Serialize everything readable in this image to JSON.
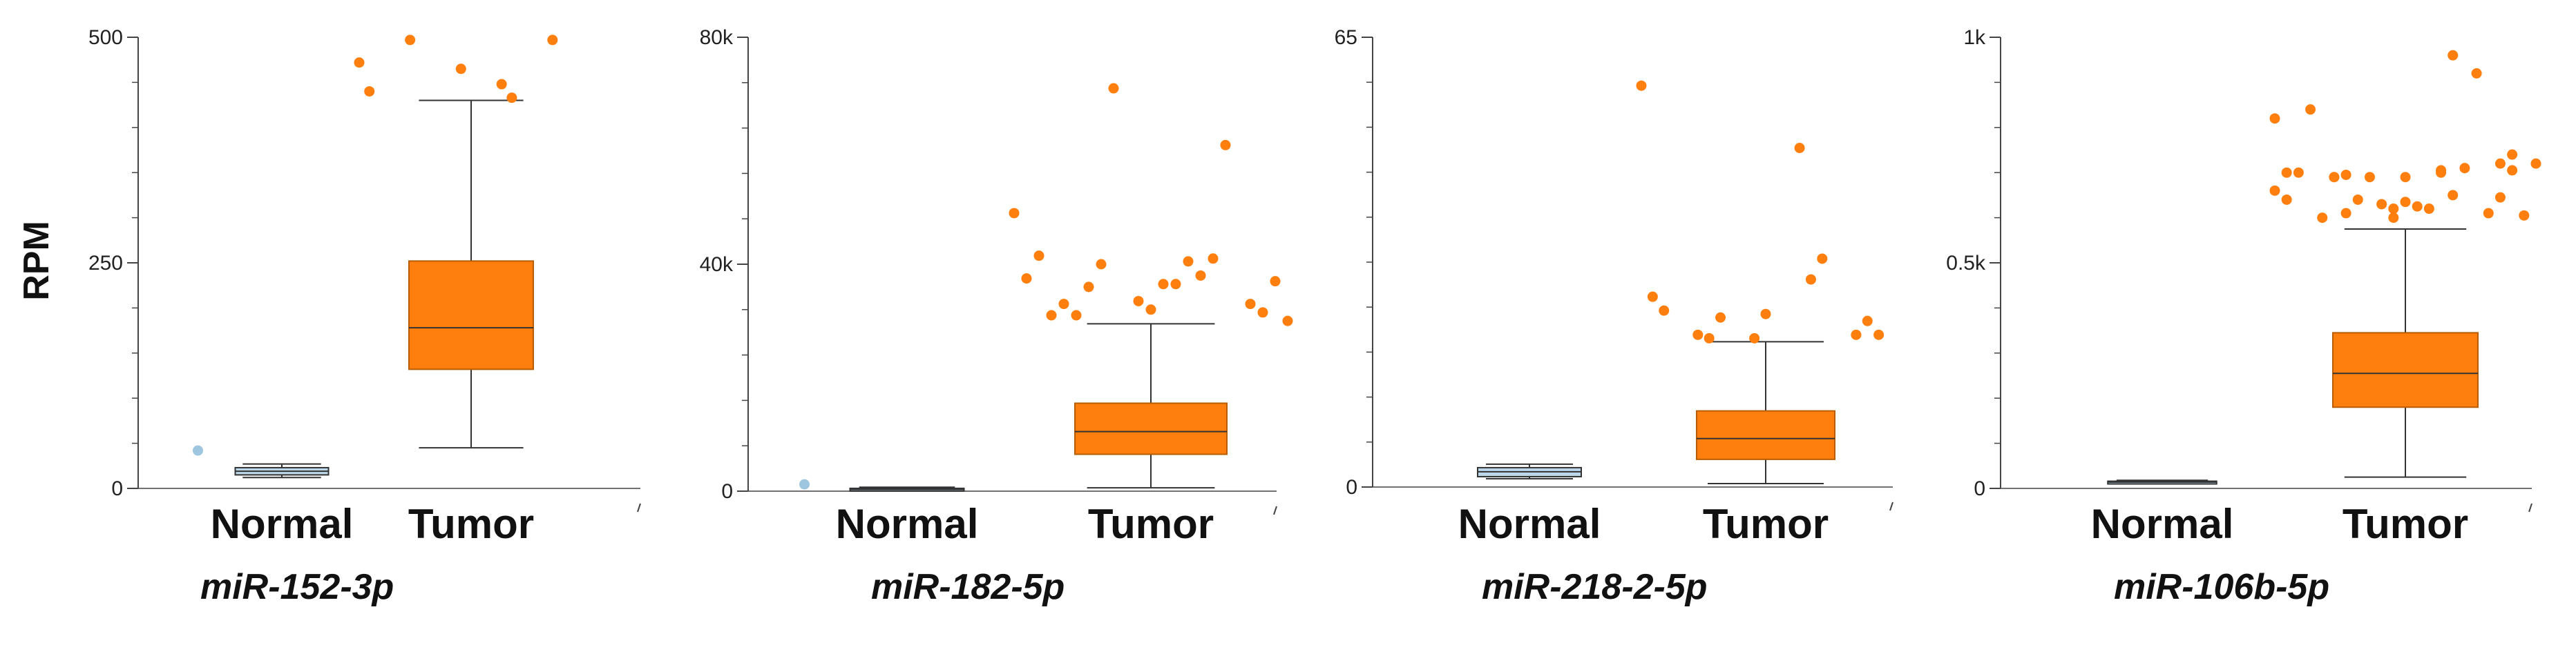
{
  "y_axis_title": "RPM",
  "colors": {
    "tumor_fill": "#ff7f0e",
    "tumor_stroke": "#b85c00",
    "normal_fill": "#bcd8ea",
    "normal_stroke": "#333333",
    "normal_outlier": "#9ec6df",
    "axis": "#444444"
  },
  "chart_data": [
    {
      "type": "box",
      "title": "miR-152-3p",
      "ylabel": "RPM",
      "ylim": [
        0,
        500
      ],
      "yticks": [
        0,
        250,
        500
      ],
      "ytick_labels": [
        "0",
        "250",
        "500"
      ],
      "categories": [
        "Normal",
        "Tumor"
      ],
      "boxes": [
        {
          "name": "Normal",
          "min": 12,
          "q1": 15,
          "median": 19,
          "q3": 23,
          "max": 27,
          "outliers": [
            42
          ]
        },
        {
          "name": "Tumor",
          "min": 45,
          "q1": 132,
          "median": 178,
          "q3": 252,
          "max": 430,
          "outliers": [
            472,
            448,
            497,
            497,
            465,
            440,
            433
          ]
        }
      ]
    },
    {
      "type": "box",
      "title": "miR-182-5p",
      "ylabel": "RPM",
      "ylim": [
        0,
        80000
      ],
      "yticks": [
        0,
        40000,
        80000
      ],
      "ytick_labels": [
        "0",
        "40k",
        "80k"
      ],
      "categories": [
        "Normal",
        "Tumor"
      ],
      "boxes": [
        {
          "name": "Normal",
          "min": 100,
          "q1": 200,
          "median": 300,
          "q3": 500,
          "max": 700,
          "outliers": [
            1200
          ]
        },
        {
          "name": "Tumor",
          "min": 600,
          "q1": 6500,
          "median": 10500,
          "q3": 15500,
          "max": 29500,
          "outliers": [
            49000,
            40500,
            31000,
            33000,
            33500,
            37500,
            38000,
            36000,
            31500,
            32000,
            41500,
            41000,
            40000,
            37000,
            36500,
            31000,
            61000,
            71000,
            30000,
            36500,
            33000
          ]
        }
      ]
    },
    {
      "type": "box",
      "title": "miR-218-2-5p",
      "ylabel": "RPM",
      "ylim": [
        0,
        65
      ],
      "yticks": [
        0,
        65
      ],
      "ytick_labels": [
        "0",
        "65"
      ],
      "categories": [
        "Normal",
        "Tumor"
      ],
      "boxes": [
        {
          "name": "Normal",
          "min": 1.2,
          "q1": 1.5,
          "median": 2.2,
          "q3": 2.8,
          "max": 3.3,
          "outliers": []
        },
        {
          "name": "Tumor",
          "min": 0.5,
          "q1": 4,
          "median": 7,
          "q3": 11,
          "max": 21,
          "outliers": [
            58,
            49,
            22,
            22,
            21.5,
            27.5,
            30,
            21.5,
            24,
            25,
            25.5,
            33,
            24.5,
            22
          ]
        }
      ]
    },
    {
      "type": "box",
      "title": "miR-106b-5p",
      "ylabel": "RPM",
      "ylim": [
        0,
        1000
      ],
      "yticks": [
        0,
        500,
        1000
      ],
      "ytick_labels": [
        "0",
        "0.5k",
        "1k"
      ],
      "categories": [
        "Normal",
        "Tumor"
      ],
      "boxes": [
        {
          "name": "Normal",
          "min": 10,
          "q1": 12,
          "median": 14,
          "q3": 16,
          "max": 18,
          "outliers": []
        },
        {
          "name": "Tumor",
          "min": 25,
          "q1": 180,
          "median": 255,
          "q3": 345,
          "max": 575,
          "outliers": [
            820,
            705,
            690,
            645,
            600,
            700,
            650,
            610,
            740,
            690,
            700,
            710,
            640,
            605,
            625,
            840,
            920,
            690,
            720,
            620,
            600,
            610,
            630,
            660,
            700,
            690,
            720,
            620,
            640,
            960,
            695,
            705,
            635
          ]
        }
      ]
    }
  ]
}
